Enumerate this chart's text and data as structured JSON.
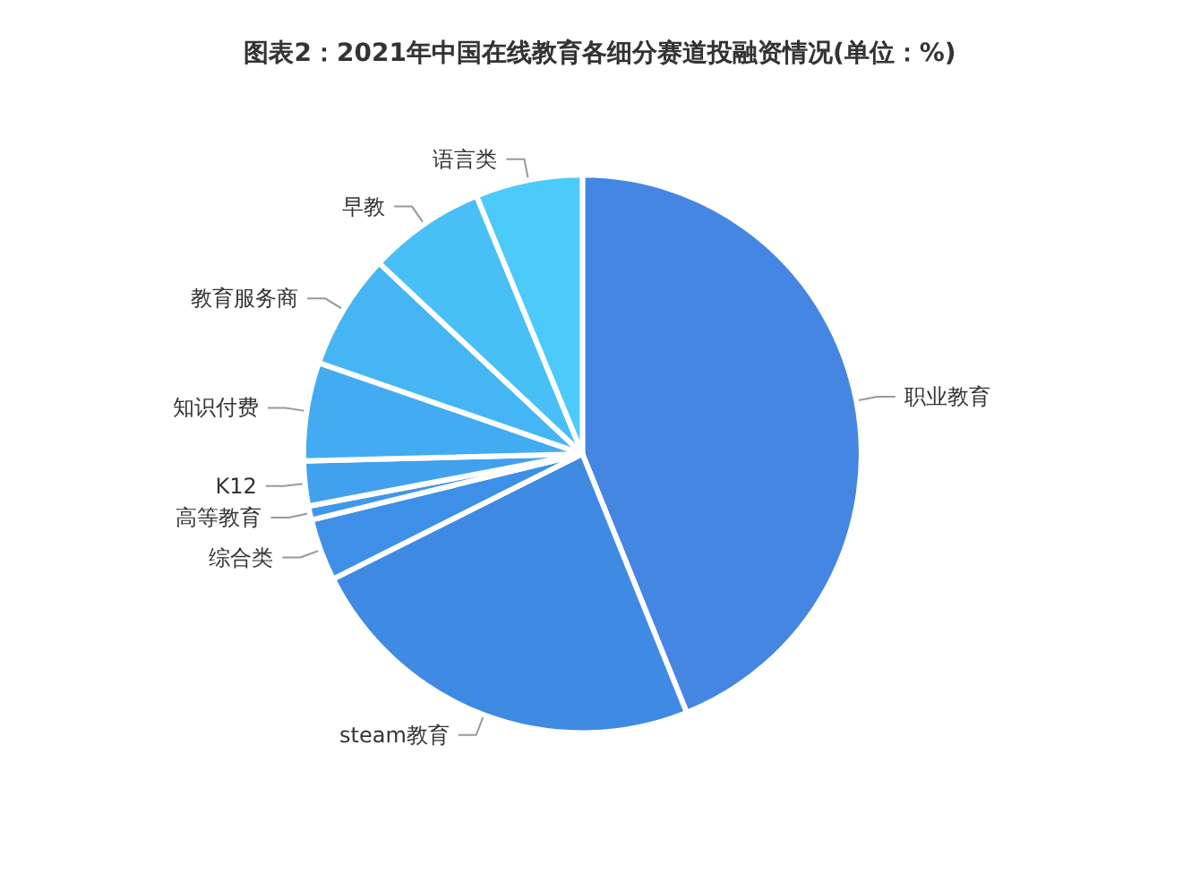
{
  "chart_data": {
    "type": "pie",
    "title": "图表2：2021年中国在线教育各细分赛道投融资情况(单位：%)",
    "categories": [
      "职业教育",
      "steam教育",
      "综合类",
      "高等教育",
      "K12",
      "知识付费",
      "教育服务商",
      "早教",
      "语言类"
    ],
    "values": [
      43.9,
      23.7,
      3.6,
      0.8,
      2.6,
      5.7,
      6.7,
      6.8,
      6.2
    ],
    "colors": [
      "#4486e2",
      "#3f8ae3",
      "#3e90e7",
      "#3f97ea",
      "#41a1ee",
      "#43abf1",
      "#45b5f3",
      "#48bff6",
      "#4ccaf9"
    ],
    "legend": false
  }
}
